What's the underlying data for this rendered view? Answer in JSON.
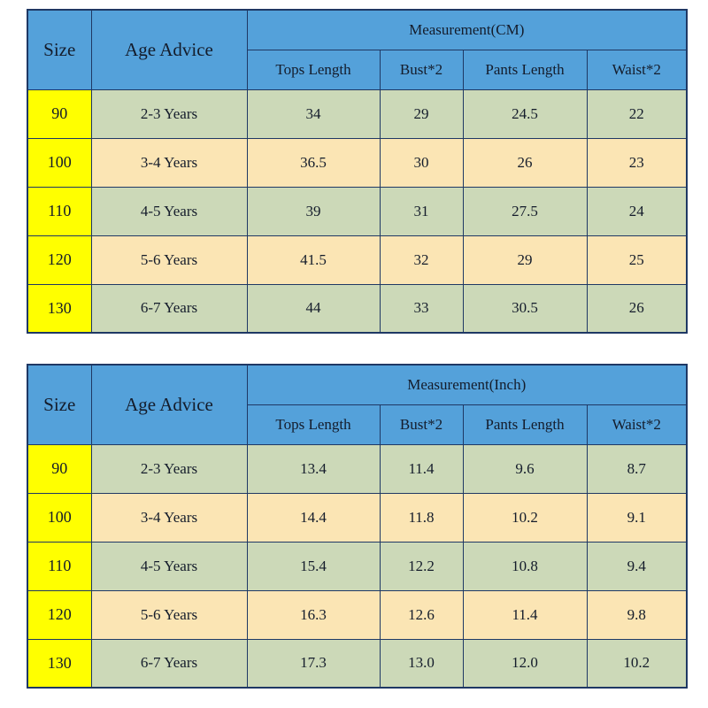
{
  "colors": {
    "header_blue": "#54a1da",
    "size_yellow": "#ffff00",
    "row_green": "#ccd9b8",
    "row_tan": "#fbe5b4",
    "border_navy": "#1f3864"
  },
  "tables": [
    {
      "size_header": "Size",
      "age_header": "Age Advice",
      "measurement_header": "Measurement(CM)",
      "columns": [
        "Tops Length",
        "Bust*2",
        "Pants Length",
        "Waist*2"
      ],
      "rows": [
        {
          "size": "90",
          "age": "2-3 Years",
          "values": [
            "34",
            "29",
            "24.5",
            "22"
          ]
        },
        {
          "size": "100",
          "age": "3-4 Years",
          "values": [
            "36.5",
            "30",
            "26",
            "23"
          ]
        },
        {
          "size": "110",
          "age": "4-5 Years",
          "values": [
            "39",
            "31",
            "27.5",
            "24"
          ]
        },
        {
          "size": "120",
          "age": "5-6 Years",
          "values": [
            "41.5",
            "32",
            "29",
            "25"
          ]
        },
        {
          "size": "130",
          "age": "6-7 Years",
          "values": [
            "44",
            "33",
            "30.5",
            "26"
          ]
        }
      ]
    },
    {
      "size_header": "Size",
      "age_header": "Age Advice",
      "measurement_header": "Measurement(Inch)",
      "columns": [
        "Tops Length",
        "Bust*2",
        "Pants Length",
        "Waist*2"
      ],
      "rows": [
        {
          "size": "90",
          "age": "2-3 Years",
          "values": [
            "13.4",
            "11.4",
            "9.6",
            "8.7"
          ]
        },
        {
          "size": "100",
          "age": "3-4 Years",
          "values": [
            "14.4",
            "11.8",
            "10.2",
            "9.1"
          ]
        },
        {
          "size": "110",
          "age": "4-5 Years",
          "values": [
            "15.4",
            "12.2",
            "10.8",
            "9.4"
          ]
        },
        {
          "size": "120",
          "age": "5-6 Years",
          "values": [
            "16.3",
            "12.6",
            "11.4",
            "9.8"
          ]
        },
        {
          "size": "130",
          "age": "6-7 Years",
          "values": [
            "17.3",
            "13.0",
            "12.0",
            "10.2"
          ]
        }
      ]
    }
  ]
}
